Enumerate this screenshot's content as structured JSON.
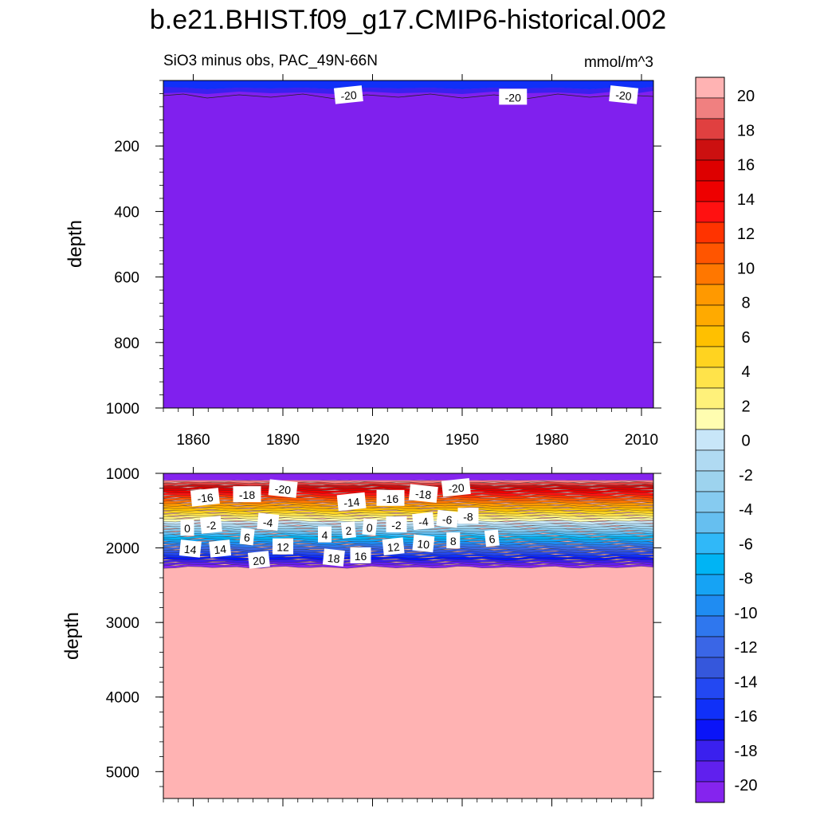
{
  "title": "b.e21.BHIST.f09_g17.CMIP6-historical.002",
  "subtitle_left": "SiO3 minus obs, PAC_49N-66N",
  "subtitle_right": "mmol/m^3",
  "chart_data": [
    {
      "type": "heatmap",
      "panel": "upper",
      "ylabel": "depth",
      "xlim": [
        1850,
        2014
      ],
      "ylim": [
        1000,
        0
      ],
      "xticks": [
        1860,
        1890,
        1920,
        1950,
        1980,
        2010
      ],
      "yticks": [
        200,
        400,
        600,
        800,
        1000
      ],
      "background_value": -21,
      "contour_labels": [
        {
          "text": "-20",
          "x": 1912,
          "y": 46
        },
        {
          "text": "-20",
          "x": 1967,
          "y": 52
        },
        {
          "text": "-20",
          "x": 2004,
          "y": 46
        }
      ]
    },
    {
      "type": "heatmap",
      "panel": "lower",
      "ylabel": "depth",
      "xlim": [
        1850,
        2014
      ],
      "ylim": [
        5360,
        1000
      ],
      "xticks": [
        1860,
        1890,
        1920,
        1950,
        1980,
        2010
      ],
      "yticks": [
        1000,
        2000,
        3000,
        4000,
        5000
      ],
      "background_value": 21,
      "contour_labels": [
        {
          "text": "-16",
          "x": 1864,
          "y": 1330
        },
        {
          "text": "-18",
          "x": 1878,
          "y": 1290
        },
        {
          "text": "-20",
          "x": 1890,
          "y": 1215
        },
        {
          "text": "-14",
          "x": 1913,
          "y": 1390
        },
        {
          "text": "-16",
          "x": 1926,
          "y": 1340
        },
        {
          "text": "-18",
          "x": 1937,
          "y": 1280
        },
        {
          "text": "-20",
          "x": 1948,
          "y": 1200
        },
        {
          "text": "-8",
          "x": 1952,
          "y": 1580
        },
        {
          "text": "-6",
          "x": 1945,
          "y": 1620
        },
        {
          "text": "-4",
          "x": 1937,
          "y": 1650
        },
        {
          "text": "-2",
          "x": 1928,
          "y": 1695
        },
        {
          "text": "0",
          "x": 1919,
          "y": 1730
        },
        {
          "text": "2",
          "x": 1912,
          "y": 1770
        },
        {
          "text": "4",
          "x": 1904,
          "y": 1830
        },
        {
          "text": "-4",
          "x": 1885,
          "y": 1660
        },
        {
          "text": "-2",
          "x": 1866,
          "y": 1700
        },
        {
          "text": "0",
          "x": 1858,
          "y": 1740
        },
        {
          "text": "6",
          "x": 1878,
          "y": 1860
        },
        {
          "text": "6",
          "x": 1960,
          "y": 1880
        },
        {
          "text": "8",
          "x": 1947,
          "y": 1910
        },
        {
          "text": "10",
          "x": 1937,
          "y": 1950
        },
        {
          "text": "12",
          "x": 1927,
          "y": 1990
        },
        {
          "text": "12",
          "x": 1890,
          "y": 1990
        },
        {
          "text": "14",
          "x": 1859,
          "y": 2020
        },
        {
          "text": "14",
          "x": 1869,
          "y": 2020
        },
        {
          "text": "16",
          "x": 1916,
          "y": 2110
        },
        {
          "text": "18",
          "x": 1907,
          "y": 2140
        },
        {
          "text": "20",
          "x": 1882,
          "y": 2170
        }
      ]
    }
  ],
  "colorbar": {
    "labels": [
      "20",
      "18",
      "16",
      "14",
      "12",
      "10",
      "8",
      "6",
      "4",
      "2",
      "0",
      "-2",
      "-4",
      "-6",
      "-8",
      "-10",
      "-12",
      "-14",
      "-16",
      "-18",
      "-20"
    ],
    "colors": [
      "#ffb3b3",
      "#f08080",
      "#e04040",
      "#cc1010",
      "#dd0000",
      "#ee0000",
      "#ff1111",
      "#ff3300",
      "#ff5500",
      "#ff7700",
      "#ff9900",
      "#ffaa00",
      "#ffc000",
      "#ffd320",
      "#ffe34a",
      "#fff17a",
      "#fffdb0",
      "#c8e6f8",
      "#b0daf2",
      "#9dd3ee",
      "#86cbf0",
      "#66bff0",
      "#30b8f8",
      "#00b4f4",
      "#16a3f4",
      "#1f8cf2",
      "#2f77ee",
      "#3a66e6",
      "#3557dc",
      "#2348f2",
      "#1030f8",
      "#0a14f8",
      "#3a20ee",
      "#6020ee",
      "#8524ee"
    ]
  }
}
